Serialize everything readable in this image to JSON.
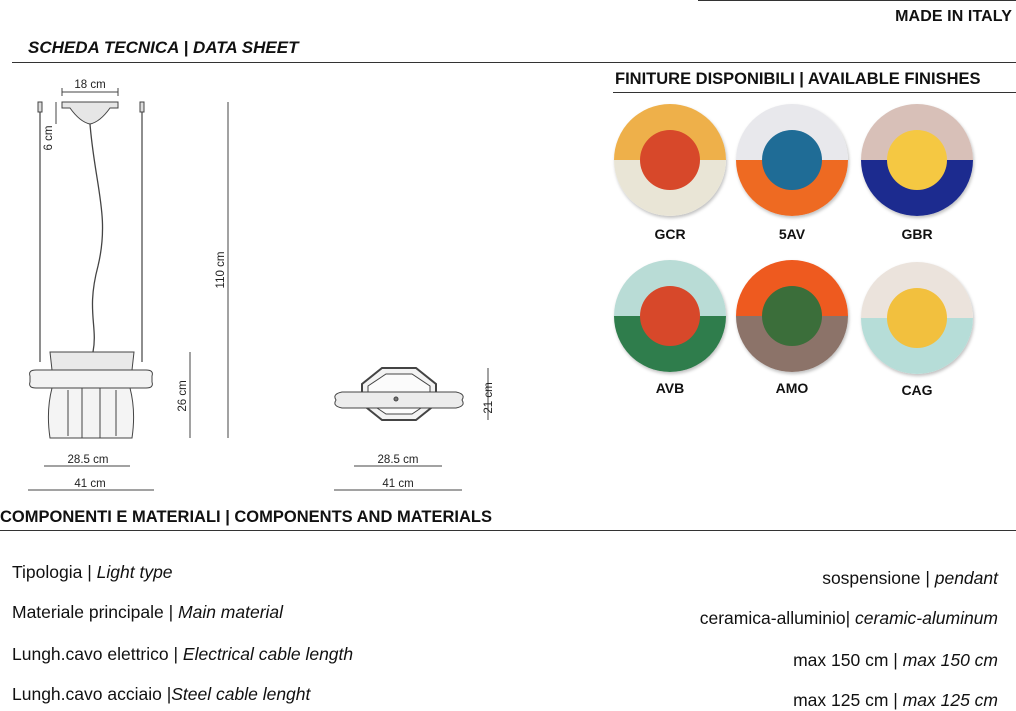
{
  "header": {
    "made_in": "MADE IN ITALY",
    "sheet_title": "SCHEDA TECNICA | DATA SHEET"
  },
  "drawing": {
    "side_view": {
      "top_width": "18 cm",
      "canopy_height": "6 cm",
      "total_height": "110 cm",
      "body_height": "26 cm",
      "body_width": "28.5 cm",
      "overall_width": "41 cm"
    },
    "top_view": {
      "depth": "21 cm",
      "body_width": "28.5 cm",
      "overall_width": "41 cm"
    }
  },
  "finishes": {
    "title": "FINITURE DISPONIBILI | AVAILABLE FINISHES",
    "items": [
      {
        "code": "GCR",
        "top": "#eeb04a",
        "bottom": "#e9e5d6",
        "dot": "#d7482a"
      },
      {
        "code": "5AV",
        "top": "#e8e8ec",
        "bottom": "#ee6a22",
        "dot": "#1f6c96"
      },
      {
        "code": "GBR",
        "top": "#d8c0b8",
        "bottom": "#1c2b8f",
        "dot": "#f5c842"
      },
      {
        "code": "AVB",
        "top": "#b9dcd6",
        "bottom": "#2f7d4c",
        "dot": "#d7482a"
      },
      {
        "code": "AMO",
        "top": "#ee5a1f",
        "bottom": "#8c7369",
        "dot": "#3b6e3a"
      },
      {
        "code": "CAG",
        "top": "#ebe3dc",
        "bottom": "#b6ddd8",
        "dot": "#f2c03e"
      }
    ]
  },
  "components": {
    "title": "COMPONENTI E MATERIALI | COMPONENTS AND MATERIALS",
    "rows": [
      {
        "label_it": "Tipologia | ",
        "label_en": "Light type",
        "value_it": "sospensione | ",
        "value_en": "pendant"
      },
      {
        "label_it": "Materiale principale | ",
        "label_en": "Main material",
        "value_it": "ceramica-alluminio| ",
        "value_en": "ceramic-aluminum"
      },
      {
        "label_it": "Lungh.cavo elettrico | ",
        "label_en": "Electrical cable length",
        "value_it": "max  150 cm | ",
        "value_en": "max  150 cm"
      },
      {
        "label_it": "Lungh.cavo acciaio |",
        "label_en": "Steel cable lenght",
        "value_it": "max  125 cm | ",
        "value_en": "max  125 cm"
      }
    ]
  }
}
